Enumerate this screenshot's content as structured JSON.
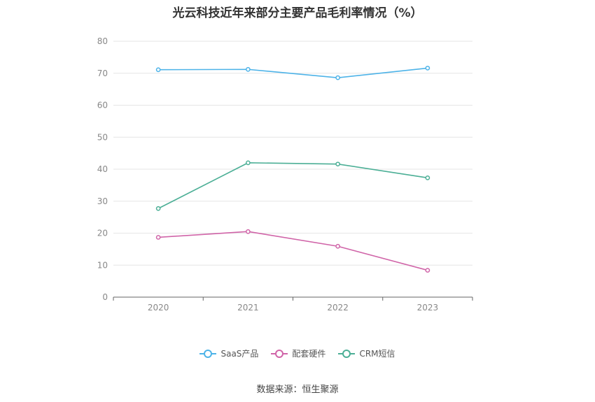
{
  "chart_data": {
    "type": "line",
    "title": "光云科技近年来部分主要产品毛利率情况（%）",
    "categories": [
      "2020",
      "2021",
      "2022",
      "2023"
    ],
    "series": [
      {
        "name": "SaaS产品",
        "color": "#4db3e8",
        "values": [
          71.1,
          71.2,
          68.6,
          71.6
        ]
      },
      {
        "name": "配套硬件",
        "color": "#d064a8",
        "values": [
          18.7,
          20.5,
          15.9,
          8.4
        ]
      },
      {
        "name": "CRM短信",
        "color": "#4caf96",
        "values": [
          27.7,
          42.0,
          41.6,
          37.3
        ]
      }
    ],
    "ylim": [
      0,
      80
    ],
    "yticks": [
      0,
      10,
      20,
      30,
      40,
      50,
      60,
      70,
      80
    ],
    "grid": true,
    "legend_position": "bottom",
    "source": "数据来源：恒生聚源"
  }
}
